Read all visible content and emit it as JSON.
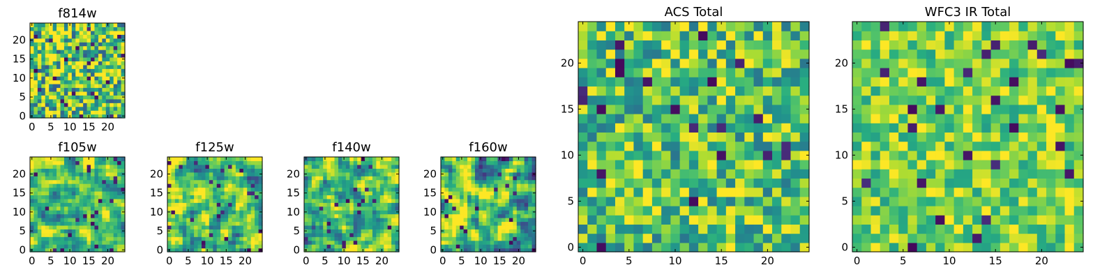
{
  "chart_data": [
    {
      "type": "heatmap",
      "title": "f814w",
      "grid": [
        25,
        25
      ],
      "xticks": [
        "0",
        "5",
        "10",
        "15",
        "20"
      ],
      "yticks": [
        "0",
        "5",
        "10",
        "15",
        "20"
      ],
      "xlim": [
        -0.5,
        24.5
      ],
      "ylim": [
        -0.5,
        24.5
      ],
      "colormap": "viridis",
      "texture": "noise",
      "mean": 0.75,
      "spread": 0.45,
      "seed": 11
    },
    {
      "type": "heatmap",
      "title": "f105w",
      "grid": [
        25,
        25
      ],
      "xticks": [
        "0",
        "5",
        "10",
        "15",
        "20"
      ],
      "yticks": [
        "0",
        "5",
        "10",
        "15",
        "20"
      ],
      "xlim": [
        -0.5,
        24.5
      ],
      "ylim": [
        -0.5,
        24.5
      ],
      "colormap": "viridis",
      "texture": "smooth",
      "mean": 0.72,
      "spread": 0.35,
      "seed": 23
    },
    {
      "type": "heatmap",
      "title": "f125w",
      "grid": [
        25,
        25
      ],
      "xticks": [
        "0",
        "5",
        "10",
        "15",
        "20"
      ],
      "yticks": [
        "0",
        "5",
        "10",
        "15",
        "20"
      ],
      "xlim": [
        -0.5,
        24.5
      ],
      "ylim": [
        -0.5,
        24.5
      ],
      "colormap": "viridis",
      "texture": "smooth",
      "mean": 0.72,
      "spread": 0.38,
      "seed": 37
    },
    {
      "type": "heatmap",
      "title": "f140w",
      "grid": [
        25,
        25
      ],
      "xticks": [
        "0",
        "5",
        "10",
        "15",
        "20"
      ],
      "yticks": [
        "0",
        "5",
        "10",
        "15",
        "20"
      ],
      "xlim": [
        -0.5,
        24.5
      ],
      "ylim": [
        -0.5,
        24.5
      ],
      "colormap": "viridis",
      "texture": "smooth",
      "mean": 0.7,
      "spread": 0.38,
      "seed": 41
    },
    {
      "type": "heatmap",
      "title": "f160w",
      "grid": [
        25,
        25
      ],
      "xticks": [
        "0",
        "5",
        "10",
        "15",
        "20"
      ],
      "yticks": [
        "0",
        "5",
        "10",
        "15",
        "20"
      ],
      "xlim": [
        -0.5,
        24.5
      ],
      "ylim": [
        -0.5,
        24.5
      ],
      "colormap": "viridis",
      "texture": "smooth",
      "mean": 0.72,
      "spread": 0.42,
      "seed": 53
    },
    {
      "type": "heatmap",
      "title": "ACS Total",
      "grid": [
        25,
        25
      ],
      "xticks": [
        "0",
        "5",
        "10",
        "15",
        "20"
      ],
      "yticks": [
        "0",
        "5",
        "10",
        "15",
        "20"
      ],
      "xlim": [
        -0.5,
        24.5
      ],
      "ylim": [
        -0.5,
        24.5
      ],
      "colormap": "viridis",
      "texture": "noise",
      "mean": 0.72,
      "spread": 0.32,
      "seed": 67
    },
    {
      "type": "heatmap",
      "title": "WFC3 IR Total",
      "grid": [
        25,
        25
      ],
      "xticks": [
        "0",
        "5",
        "10",
        "15",
        "20"
      ],
      "yticks": [
        "0",
        "5",
        "10",
        "15",
        "20"
      ],
      "xlim": [
        -0.5,
        24.5
      ],
      "ylim": [
        -0.5,
        24.5
      ],
      "colormap": "viridis",
      "texture": "noise",
      "mean": 0.8,
      "spread": 0.24,
      "seed": 79
    }
  ]
}
